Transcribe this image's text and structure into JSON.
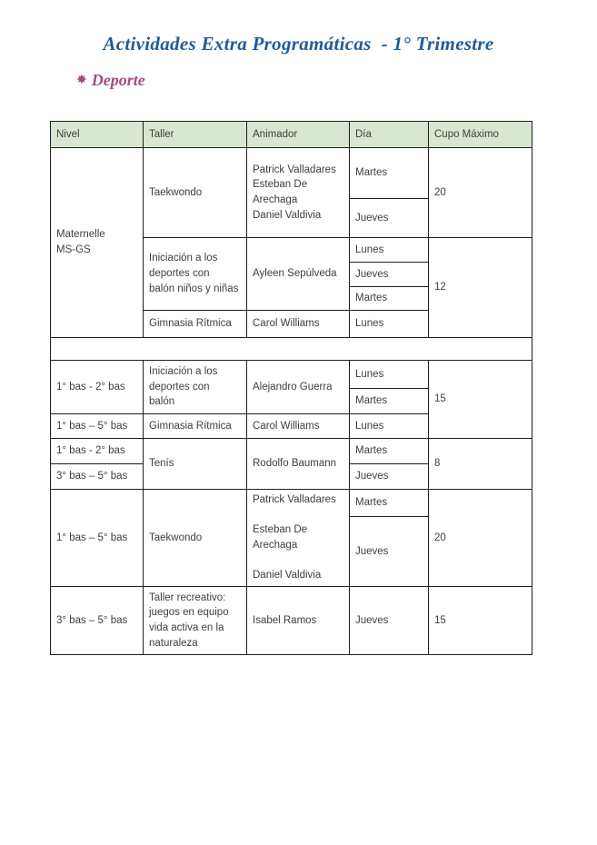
{
  "document": {
    "title": "Actividades Extra Programáticas  - 1° Trimestre",
    "section_heading": {
      "icon": "eight-pointed-star-icon",
      "glyph": "✸",
      "label": "Deporte"
    }
  },
  "colors": {
    "title_blue": "#1f5c99",
    "heading_plum": "#a44a7e",
    "header_green": "#d8e6d2",
    "border_dark": "#1f1f1f",
    "body_text": "#3e3e3e"
  },
  "table": {
    "headers": [
      "Nivel",
      "Taller",
      "Animador",
      "Día",
      "Cupo Máximo"
    ],
    "maternelle": {
      "nivel": "Maternelle\nMS-GS",
      "taekwondo": {
        "taller": "Taekwondo",
        "animador": "Patrick Valladares\nEsteban De\nArechaga\nDaniel Valdivia",
        "dia_1": "Martes",
        "dia_2": "Jueves",
        "cupo": "20"
      },
      "iniciacion": {
        "taller": "Iniciación a los\ndeportes con\nbalón niños y niñas",
        "animador": "Ayleen Sepúlveda",
        "dia_1": "Lunes",
        "dia_2": "Jueves",
        "dia_3": "Martes",
        "cupo": "12"
      },
      "gimnasia": {
        "taller": "Gimnasia Rítmica",
        "animador": "Carol Williams",
        "dia_1": "Lunes"
      }
    },
    "basica": {
      "iniciacion": {
        "nivel": "1° bas - 2° bas",
        "taller": "Iniciación a los\ndeportes con\nbalón",
        "animador": "Alejandro Guerra",
        "dia_1": "Lunes",
        "dia_2": "Martes",
        "cupo": "15"
      },
      "gimnasia": {
        "nivel": "1° bas – 5° bas",
        "taller": "Gimnasia Rítmica",
        "animador": "Carol Williams",
        "dia_1": "Lunes"
      }
    },
    "tenis": {
      "nivel_1": "1° bas - 2° bas",
      "nivel_2": "3° bas – 5° bas",
      "taller": "Tenís",
      "animador": "Rodolfo Baumann",
      "dia_1": "Martes",
      "dia_2": "Jueves",
      "cupo": "8"
    },
    "taekwondo_bas": {
      "nivel": "1° bas – 5° bas",
      "taller": "Taekwondo",
      "animador": "Patrick Valladares\n\nEsteban  De\nArechaga\n\nDaniel Valdivia",
      "dia_1": "Martes",
      "dia_2": "Jueves",
      "cupo": "20"
    },
    "recreativo": {
      "nivel": "3° bas – 5° bas",
      "taller": "Taller recreativo:\njuegos en equipo\nvida activa en la\nnaturaleza",
      "animador": "Isabel Ramos",
      "dia_1": "Jueves",
      "cupo": "15"
    }
  }
}
